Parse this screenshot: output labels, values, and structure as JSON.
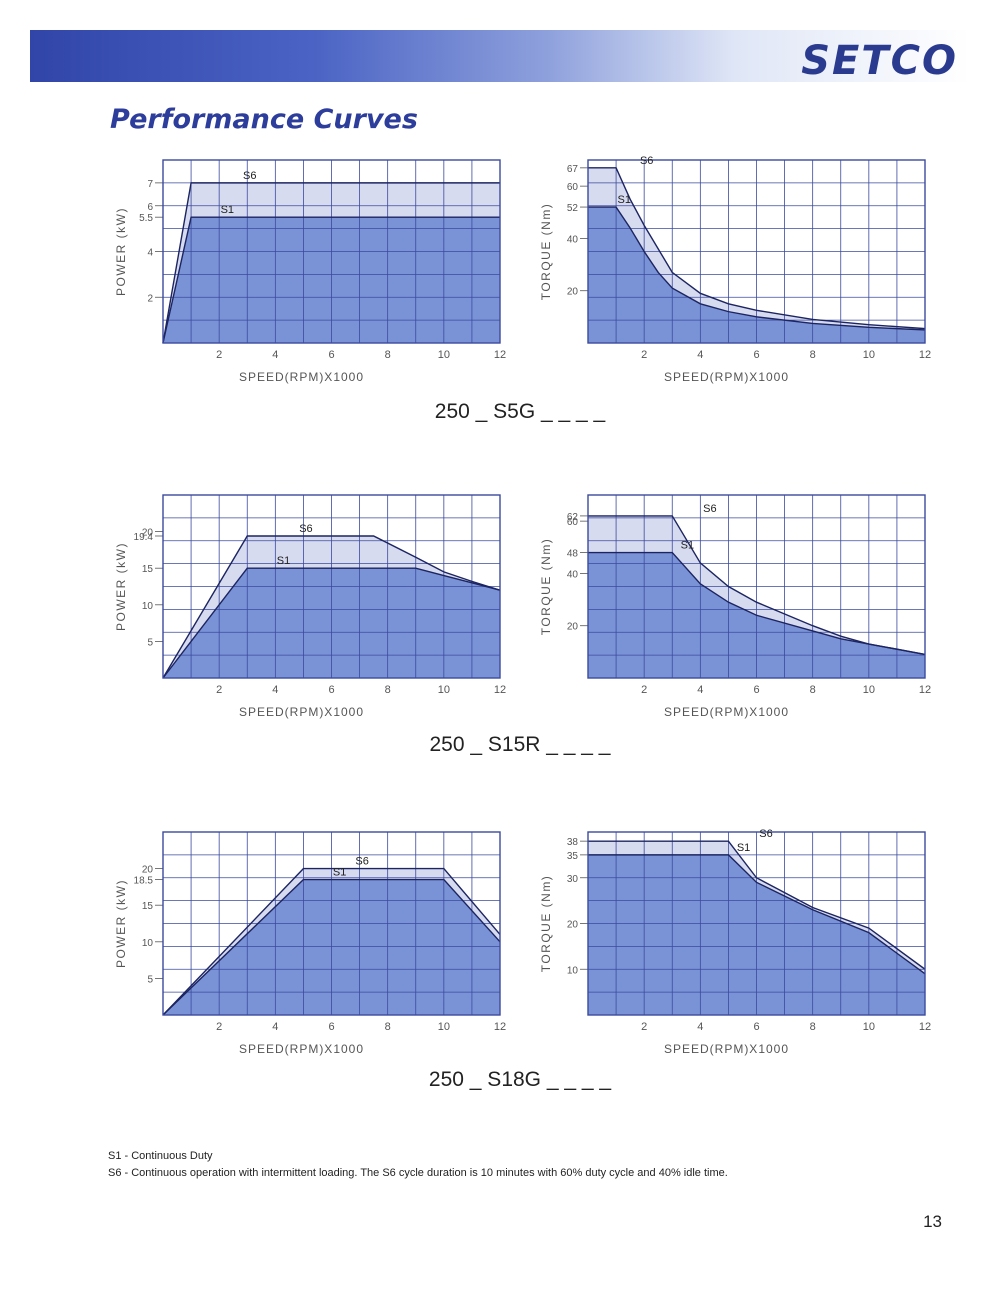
{
  "header": {
    "brand": "SETCO",
    "colors": {
      "banner": "#3145a8",
      "title": "#2d3d9c",
      "s1_fill": "#7a93d6",
      "s6_fill": "#d7dbef",
      "grid": "#3b4a9e"
    }
  },
  "page_title": "Performance Curves",
  "models": [
    {
      "label": "250 _ S5G _ _ _ _"
    },
    {
      "label": "250 _ S15R _ _ _ _"
    },
    {
      "label": "250 _ S18G _ _ _ _"
    }
  ],
  "chart_data": [
    {
      "type": "area",
      "xlabel": "SPEED(RPM)X1000",
      "ylabel": "POWER (kW)",
      "xlim": [
        0,
        12
      ],
      "ylim": [
        0,
        8
      ],
      "x_ticks": [
        "2",
        "4",
        "6",
        "8",
        "10",
        "12"
      ],
      "y_ticks": [
        "2",
        "4",
        "5.5",
        "6",
        "7"
      ],
      "series": [
        {
          "name": "S6",
          "x": [
            0,
            1,
            12
          ],
          "y": [
            0,
            7,
            7
          ]
        },
        {
          "name": "S1",
          "x": [
            0,
            1,
            12
          ],
          "y": [
            0,
            5.5,
            5.5
          ]
        }
      ]
    },
    {
      "type": "area",
      "xlabel": "SPEED(RPM)X1000",
      "ylabel": "TORQUE (Nm)",
      "xlim": [
        0,
        12
      ],
      "ylim": [
        0,
        70
      ],
      "x_ticks": [
        "2",
        "4",
        "6",
        "8",
        "10",
        "12"
      ],
      "y_ticks": [
        "20",
        "40",
        "52",
        "60",
        "67"
      ],
      "series": [
        {
          "name": "S6",
          "x": [
            0,
            1,
            1.5,
            2,
            2.5,
            3,
            4,
            5,
            6,
            8,
            10,
            12
          ],
          "y": [
            67,
            67,
            55,
            45,
            36,
            27,
            19,
            15,
            12.5,
            9,
            7,
            5.5
          ]
        },
        {
          "name": "S1",
          "x": [
            0,
            1,
            1.5,
            2,
            2.5,
            3,
            4,
            5,
            6,
            8,
            10,
            12
          ],
          "y": [
            52,
            52,
            44,
            35,
            27,
            21,
            15,
            12,
            10,
            7.5,
            6,
            5
          ]
        }
      ]
    },
    {
      "type": "area",
      "xlabel": "SPEED(RPM)X1000",
      "ylabel": "POWER (kW)",
      "xlim": [
        0,
        12
      ],
      "ylim": [
        0,
        25
      ],
      "x_ticks": [
        "2",
        "4",
        "6",
        "8",
        "10",
        "12"
      ],
      "y_ticks": [
        "5",
        "10",
        "15",
        "19.4",
        "20"
      ],
      "series": [
        {
          "name": "S6",
          "x": [
            0,
            3,
            7.5,
            9,
            10,
            11,
            12
          ],
          "y": [
            0,
            19.4,
            19.4,
            16.5,
            14.5,
            13.2,
            12
          ]
        },
        {
          "name": "S1",
          "x": [
            0,
            3,
            7.5,
            9,
            10,
            11,
            12
          ],
          "y": [
            0,
            15,
            15,
            15,
            14,
            13,
            12
          ]
        }
      ]
    },
    {
      "type": "area",
      "xlabel": "SPEED(RPM)X1000",
      "ylabel": "TORQUE (Nm)",
      "xlim": [
        0,
        12
      ],
      "ylim": [
        0,
        70
      ],
      "x_ticks": [
        "2",
        "4",
        "6",
        "8",
        "10",
        "12"
      ],
      "y_ticks": [
        "20",
        "40",
        "48",
        "60",
        "62"
      ],
      "series": [
        {
          "name": "S6",
          "x": [
            0,
            3,
            4,
            5,
            6,
            8,
            9,
            10,
            11,
            12
          ],
          "y": [
            62,
            62,
            44,
            35,
            29,
            20,
            16,
            13,
            11,
            9
          ]
        },
        {
          "name": "S1",
          "x": [
            0,
            3,
            4,
            5,
            6,
            8,
            9,
            10,
            11,
            12
          ],
          "y": [
            48,
            48,
            36,
            29,
            24,
            18,
            15,
            13,
            11,
            9
          ]
        }
      ]
    },
    {
      "type": "area",
      "xlabel": "SPEED(RPM)X1000",
      "ylabel": "POWER (kW)",
      "xlim": [
        0,
        12
      ],
      "ylim": [
        0,
        25
      ],
      "x_ticks": [
        "2",
        "4",
        "6",
        "8",
        "10",
        "12"
      ],
      "y_ticks": [
        "5",
        "10",
        "15",
        "18.5",
        "20"
      ],
      "series": [
        {
          "name": "S6",
          "x": [
            0,
            5,
            10,
            12
          ],
          "y": [
            0,
            20,
            20,
            11
          ]
        },
        {
          "name": "S1",
          "x": [
            0,
            5,
            10,
            12
          ],
          "y": [
            0,
            18.5,
            18.5,
            10
          ]
        }
      ]
    },
    {
      "type": "area",
      "xlabel": "SPEED(RPM)X1000",
      "ylabel": "TORQUE (Nm)",
      "xlim": [
        0,
        12
      ],
      "ylim": [
        0,
        40
      ],
      "x_ticks": [
        "2",
        "4",
        "6",
        "8",
        "10",
        "12"
      ],
      "y_ticks": [
        "10",
        "20",
        "30",
        "35",
        "38"
      ],
      "series": [
        {
          "name": "S6",
          "x": [
            0,
            5,
            6,
            8,
            10,
            12
          ],
          "y": [
            38,
            38,
            30,
            23.5,
            19,
            10
          ]
        },
        {
          "name": "S1",
          "x": [
            0,
            5,
            6,
            8,
            10,
            12
          ],
          "y": [
            35,
            35,
            29,
            23,
            18,
            9
          ]
        }
      ]
    }
  ],
  "notes": {
    "s1": "S1 - Continuous Duty",
    "s6": "S6 - Continuous operation with intermittent loading. The S6 cycle duration is 10 minutes with 60% duty cycle and 40% idle time."
  },
  "page_number": "13"
}
